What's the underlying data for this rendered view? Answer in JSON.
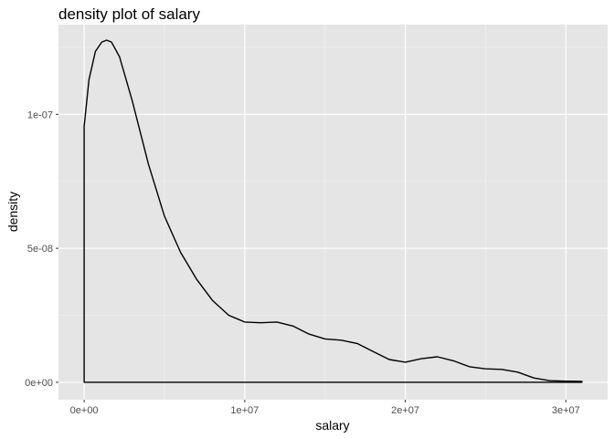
{
  "chart_data": {
    "type": "area",
    "title": "density plot of salary",
    "xlabel": "salary",
    "ylabel": "density",
    "xlim": [
      -1600000,
      32600000
    ],
    "ylim": [
      -6.5e-09,
      1.335e-07
    ],
    "x_ticks": [
      {
        "value": 0,
        "label": "0e+00"
      },
      {
        "value": 10000000,
        "label": "1e+07"
      },
      {
        "value": 20000000,
        "label": "2e+07"
      },
      {
        "value": 30000000,
        "label": "3e+07"
      }
    ],
    "y_ticks": [
      {
        "value": 0,
        "label": "0e+00"
      },
      {
        "value": 5e-08,
        "label": "5e-08"
      },
      {
        "value": 1e-07,
        "label": "1e-07"
      }
    ],
    "grid": true,
    "legend": "none",
    "fill": "none",
    "series": [
      {
        "x": [
          0,
          300000,
          700000,
          1100000,
          1400000,
          1700000,
          2200000,
          3000000,
          4000000,
          5000000,
          6000000,
          7000000,
          8000000,
          9000000,
          10000000,
          11000000,
          12000000,
          13000000,
          14000000,
          15000000,
          16000000,
          17000000,
          18000000,
          19000000,
          20000000,
          21000000,
          22000000,
          23000000,
          24000000,
          25000000,
          26000000,
          27000000,
          28000000,
          29000000,
          30000000,
          31000000
        ],
        "y": [
          9.55e-08,
          1.13e-07,
          1.235e-07,
          1.27e-07,
          1.277e-07,
          1.27e-07,
          1.215e-07,
          1.05e-07,
          8.15e-08,
          6.2e-08,
          4.85e-08,
          3.85e-08,
          3.05e-08,
          2.5e-08,
          2.25e-08,
          2.22e-08,
          2.25e-08,
          2.1e-08,
          1.8e-08,
          1.62e-08,
          1.57e-08,
          1.45e-08,
          1.15e-08,
          8.5e-09,
          7.5e-09,
          8.8e-09,
          9.5e-09,
          8e-09,
          5.8e-09,
          5e-09,
          4.8e-09,
          3.8e-09,
          1.6e-09,
          6e-10,
          4e-10,
          3e-10
        ]
      }
    ]
  }
}
